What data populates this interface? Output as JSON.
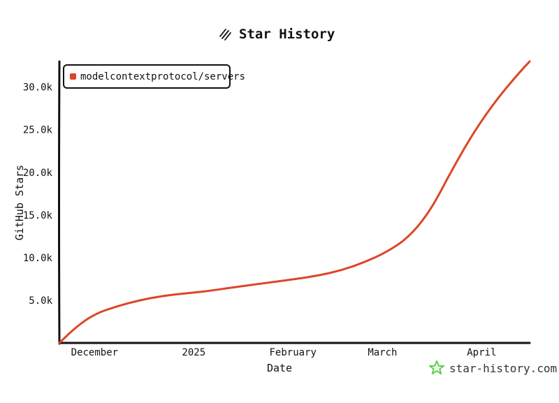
{
  "chart_data": {
    "type": "line",
    "title": "Star History",
    "xlabel": "Date",
    "ylabel": "GitHub Stars",
    "x_ticks": [
      "December",
      "2025",
      "February",
      "March",
      "April"
    ],
    "y_ticks": [
      "5.0k",
      "10.0k",
      "15.0k",
      "20.0k",
      "25.0k",
      "30.0k"
    ],
    "ylim": [
      0,
      33000
    ],
    "xlim": [
      "2024-11-20",
      "2025-04-16"
    ],
    "legend_position": "top-left",
    "series": [
      {
        "name": "modelcontextprotocol/servers",
        "color": "#dd4528",
        "x": [
          "2024-11-20",
          "2024-11-25",
          "2024-12-01",
          "2024-12-08",
          "2024-12-15",
          "2024-12-22",
          "2024-12-29",
          "2025-01-05",
          "2025-01-12",
          "2025-01-19",
          "2025-01-26",
          "2025-02-02",
          "2025-02-09",
          "2025-02-16",
          "2025-02-23",
          "2025-03-02",
          "2025-03-09",
          "2025-03-16",
          "2025-03-23",
          "2025-03-30",
          "2025-04-06",
          "2025-04-13",
          "2025-04-16"
        ],
        "y": [
          0,
          1800,
          3400,
          4300,
          5000,
          5500,
          5800,
          6050,
          6450,
          6800,
          7150,
          7500,
          7900,
          8500,
          9400,
          10600,
          12300,
          15500,
          20500,
          25000,
          28700,
          31800,
          33000
        ]
      }
    ],
    "grid": false
  },
  "watermark": {
    "text": "star-history.com",
    "icon": "star-history-logo-icon",
    "color": "#5cd04a"
  },
  "title_icon": "star-history-title-icon"
}
